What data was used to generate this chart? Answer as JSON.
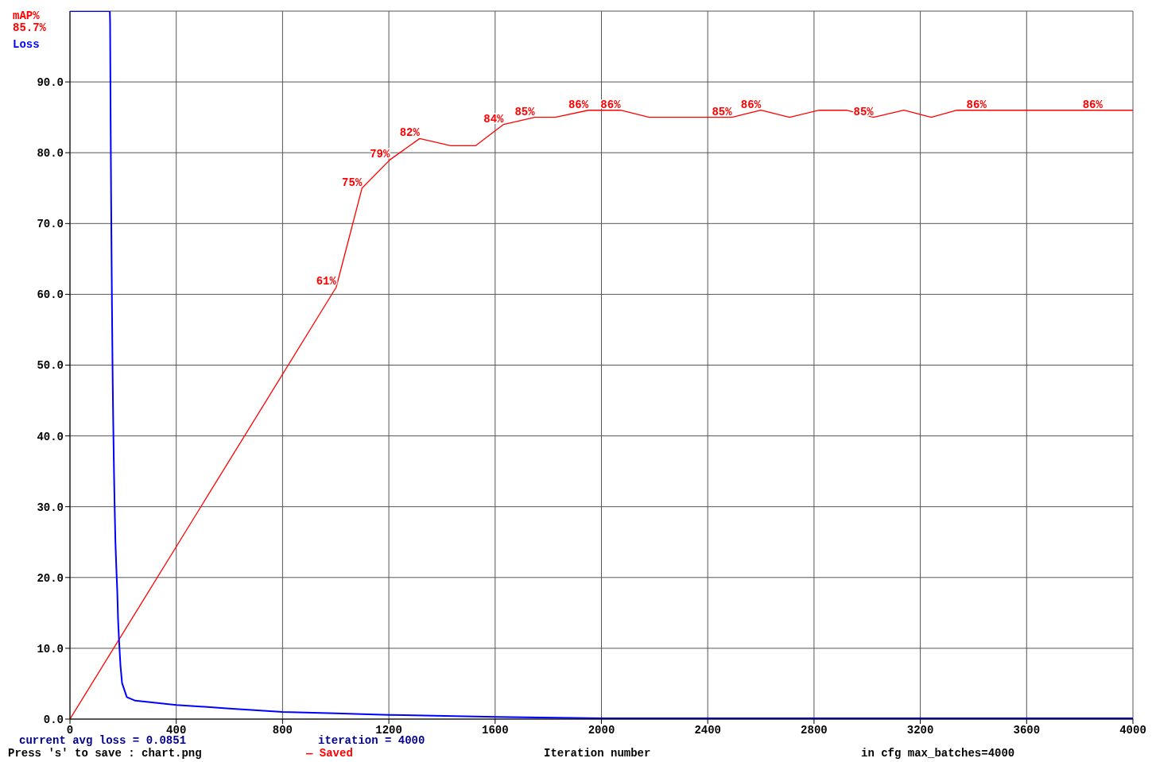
{
  "chart_data": {
    "type": "line",
    "xlabel": "Iteration number",
    "annotations": [
      "85.7%",
      "current avg loss = 0.0851",
      "iteration = 4000",
      "Press 's' to save : chart.png",
      "— Saved",
      "in cfg max_batches=4000"
    ],
    "xlim": [
      0,
      4000
    ],
    "xticks": [
      0,
      400,
      800,
      1200,
      1600,
      2000,
      2400,
      2800,
      3200,
      3600,
      4000
    ],
    "ylim": [
      0,
      100
    ],
    "yticks": [
      {
        "value": 0,
        "label": "0.0"
      },
      {
        "value": 10,
        "label": "10.0"
      },
      {
        "value": 20,
        "label": "20.0"
      },
      {
        "value": 30,
        "label": "30.0"
      },
      {
        "value": 40,
        "label": "40.0"
      },
      {
        "value": 50,
        "label": "50.0"
      },
      {
        "value": 60,
        "label": "60.0"
      },
      {
        "value": 70,
        "label": "70.0"
      },
      {
        "value": 80,
        "label": "80.0"
      },
      {
        "value": 90,
        "label": "90.0"
      }
    ],
    "grid": true,
    "legend": "top left",
    "series": [
      {
        "name": "mAP%",
        "color": "#ff0000",
        "x": [
          0,
          1002,
          1099,
          1204,
          1316,
          1433,
          1527,
          1632,
          1749,
          1826,
          1951,
          2072,
          2180,
          2292,
          2491,
          2600,
          2708,
          2819,
          2922,
          3024,
          3138,
          3241,
          3338,
          3449,
          3886,
          4000
        ],
        "values": [
          0,
          61,
          75,
          79,
          82,
          81,
          81,
          84,
          85,
          85,
          86,
          86,
          85,
          85,
          85,
          86,
          85,
          86,
          86,
          85,
          86,
          85,
          86,
          86,
          86,
          86
        ],
        "value_labels": [
          null,
          "61%",
          "75%",
          "79%",
          "82%",
          null,
          null,
          "84%",
          "85%",
          null,
          "86%",
          "86%",
          null,
          null,
          "85%",
          "86%",
          null,
          null,
          null,
          "85%",
          null,
          null,
          null,
          "86%",
          "86%",
          null
        ]
      },
      {
        "name": "Loss",
        "color": "#0000ff",
        "x": [
          0,
          150,
          151,
          152,
          153,
          154,
          155,
          156,
          157,
          158,
          159,
          160,
          161,
          162,
          163,
          164,
          165,
          166,
          167,
          168,
          169,
          170,
          171,
          174,
          178,
          181,
          185,
          190,
          196,
          214,
          246,
          400,
          600,
          800,
          1000,
          1200,
          1600,
          2000,
          3000,
          4000
        ],
        "values": [
          100,
          100,
          98.6,
          91.6,
          84.8,
          78.9,
          73.2,
          68,
          63.1,
          58.7,
          54.7,
          50.7,
          47.3,
          44.2,
          41.5,
          39.1,
          36.6,
          34.3,
          32.3,
          30.3,
          28.5,
          26.8,
          25.1,
          21.9,
          18.1,
          14.1,
          10.9,
          7.6,
          5.1,
          3.1,
          2.6,
          2.0,
          1.5,
          1.0,
          0.8,
          0.6,
          0.3,
          0.1,
          0.1,
          0.1
        ]
      }
    ]
  }
}
